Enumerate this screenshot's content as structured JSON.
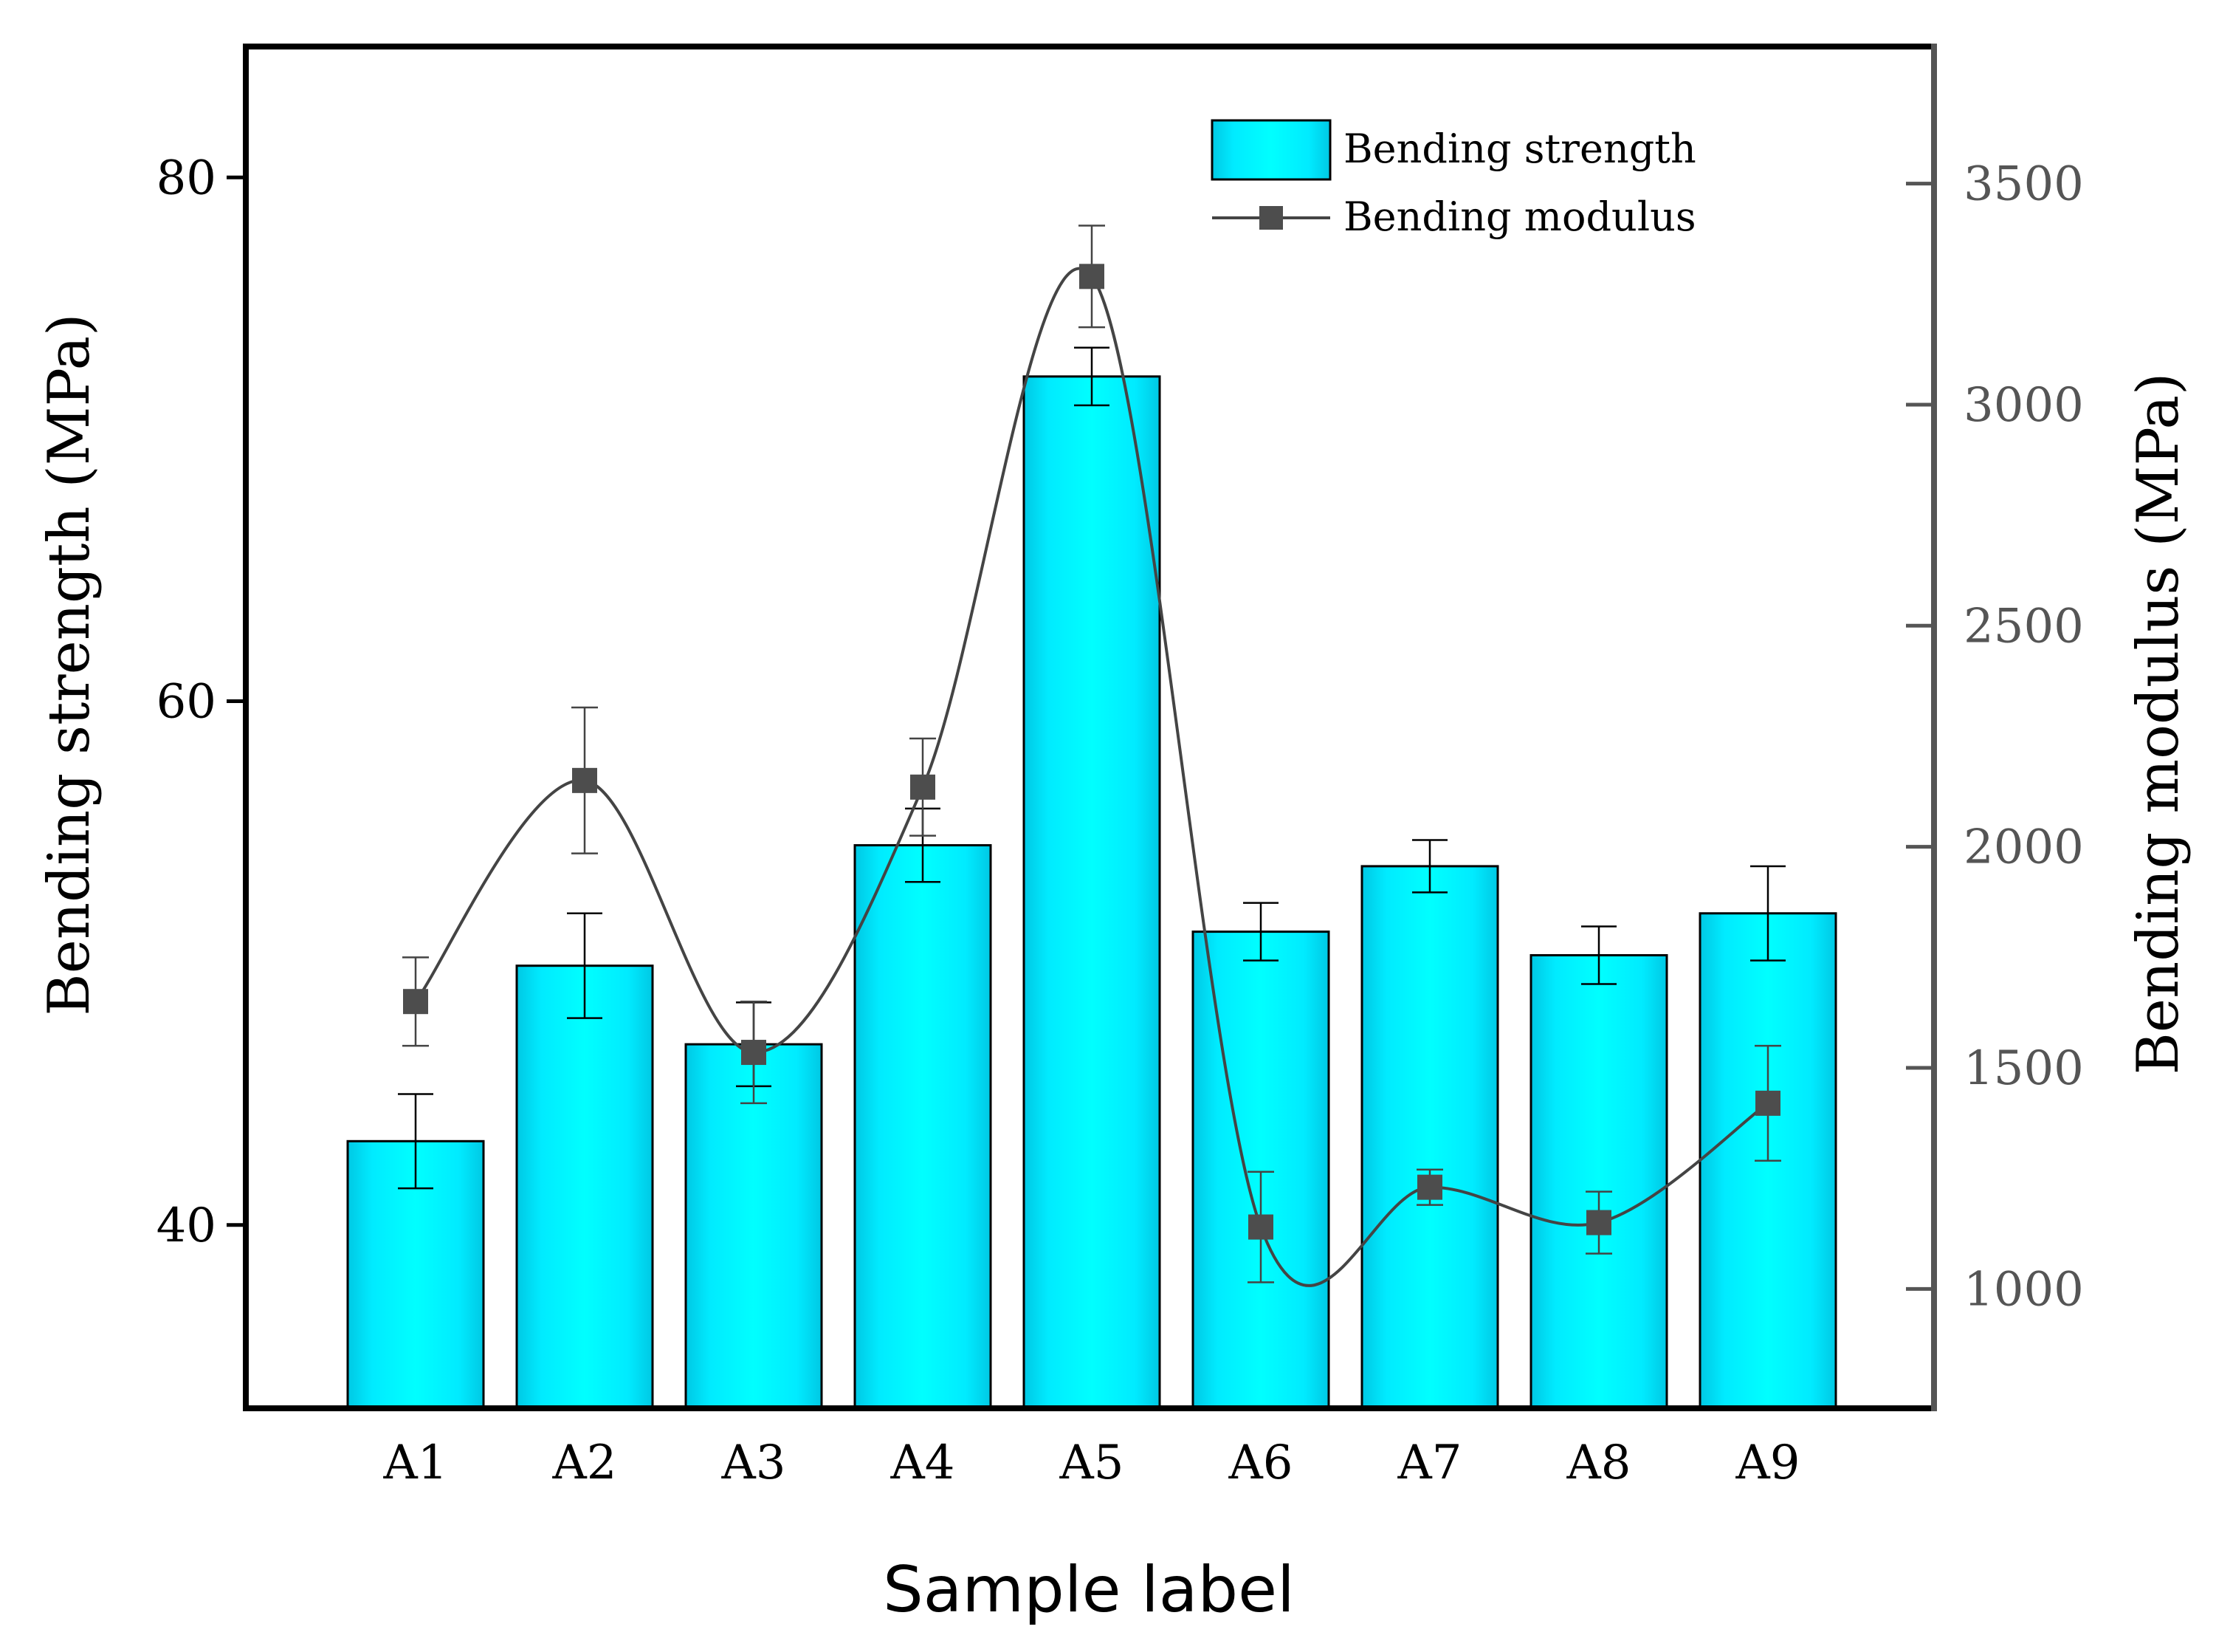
{
  "chart_data": {
    "type": "bar",
    "title": "",
    "xlabel": "Sample label",
    "ylabel": "Bending strength (MPa)",
    "y2label": "Bending modulus (MPa)",
    "categories": [
      "A1",
      "A2",
      "A3",
      "A4",
      "A5",
      "A6",
      "A7",
      "A8",
      "A9"
    ],
    "bar_series": {
      "name": "Bending strength",
      "values": [
        43.2,
        49.9,
        46.9,
        54.5,
        72.4,
        51.2,
        53.7,
        50.3,
        51.9
      ],
      "errors": [
        1.8,
        2.0,
        1.6,
        1.4,
        1.1,
        1.1,
        1.0,
        1.1,
        1.8
      ]
    },
    "line_series": {
      "name": "Bending modulus",
      "values": [
        1650,
        2150,
        1535,
        2135,
        3290,
        1140,
        1230,
        1150,
        1420
      ],
      "errors": [
        100,
        165,
        115,
        110,
        115,
        125,
        40,
        70,
        130
      ]
    },
    "ylim": [
      33,
      85
    ],
    "y2lim": [
      730,
      3810
    ],
    "yticks": [
      "40",
      "60",
      "80"
    ],
    "y2ticks": [
      "1000",
      "1500",
      "2000",
      "2500",
      "3000",
      "3500"
    ],
    "legend": "top-right",
    "colors": {
      "bar_edge": "#00cfe6",
      "bar_center": "#00f6ff",
      "line": "#444444",
      "marker": "#4d4d4d",
      "right_axis": "#555555",
      "axis": "#000000"
    }
  }
}
